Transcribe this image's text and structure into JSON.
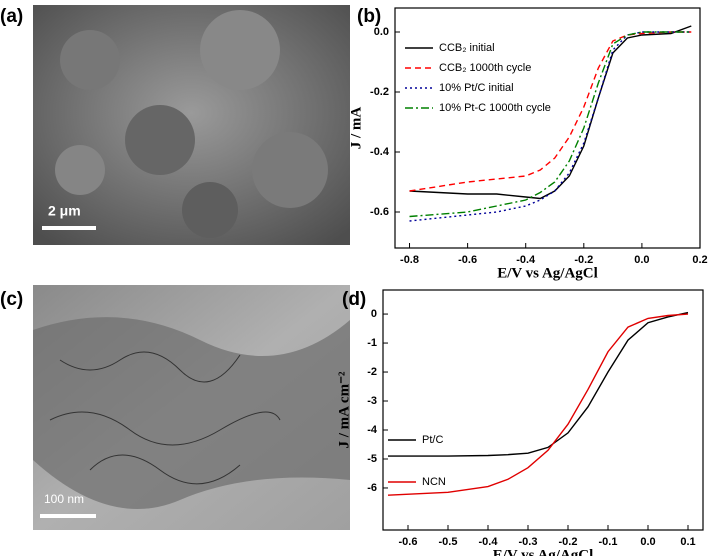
{
  "images": [
    {
      "panel_label": "(a)",
      "scale_bar": "2 μm"
    },
    {
      "panel_label": "(c)",
      "scale_bar": "100 nm"
    }
  ],
  "chart_data": [
    {
      "type": "line",
      "panel_label": "(b)",
      "x_label": "E/V vs Ag/AgCl",
      "y_label": "J / mA",
      "x": [
        -0.8,
        -0.6,
        -0.5,
        -0.4,
        -0.35,
        -0.3,
        -0.25,
        -0.2,
        -0.15,
        -0.1,
        -0.05,
        0,
        0.1,
        0.17
      ],
      "series": [
        {
          "name": "CCB₂   initial",
          "color": "#000000",
          "style": "solid",
          "values": [
            -0.53,
            -0.54,
            -0.54,
            -0.55,
            -0.555,
            -0.53,
            -0.48,
            -0.38,
            -0.22,
            -0.07,
            -0.02,
            -0.01,
            -0.005,
            0.02
          ]
        },
        {
          "name": "CCB₂   1000th cycle",
          "color": "#ff0000",
          "style": "dashed",
          "values": [
            -0.53,
            -0.5,
            -0.49,
            -0.48,
            -0.46,
            -0.42,
            -0.35,
            -0.25,
            -0.12,
            -0.03,
            -0.01,
            -0.005,
            0.0,
            0.0
          ]
        },
        {
          "name": "10% Pt/C   initial",
          "color": "#000099",
          "style": "dotted",
          "values": [
            -0.63,
            -0.61,
            -0.6,
            -0.58,
            -0.56,
            -0.53,
            -0.47,
            -0.37,
            -0.22,
            -0.06,
            -0.01,
            0.0,
            0.0,
            0.0
          ]
        },
        {
          "name": "10% Pt-C   1000th cycle",
          "color": "#008000",
          "style": "dashdot",
          "values": [
            -0.615,
            -0.6,
            -0.58,
            -0.56,
            -0.535,
            -0.5,
            -0.43,
            -0.32,
            -0.17,
            -0.04,
            -0.01,
            0.0,
            0.0,
            0.0
          ]
        }
      ],
      "xlim": [
        -0.85,
        0.2
      ],
      "ylim": [
        -0.72,
        0.08
      ],
      "xticks": [
        -0.8,
        -0.6,
        -0.4,
        -0.2,
        {
          "value": 0,
          "label": "0.0"
        },
        0.2
      ],
      "yticks": [
        {
          "value": 0,
          "label": "0.0"
        },
        -0.2,
        -0.4,
        -0.6
      ],
      "legend": "upper left"
    },
    {
      "type": "line",
      "panel_label": "(d)",
      "x_label": "E/V vs Ag/AgCl",
      "y_label": "J / mA cm⁻²",
      "x": [
        -0.65,
        -0.5,
        -0.4,
        -0.35,
        -0.3,
        -0.25,
        -0.2,
        -0.15,
        -0.1,
        -0.05,
        0,
        0.05,
        0.1
      ],
      "series": [
        {
          "name": "Pt/C",
          "color": "#000000",
          "style": "solid",
          "values": [
            -4.9,
            -4.9,
            -4.88,
            -4.85,
            -4.8,
            -4.6,
            -4.1,
            -3.2,
            -2.0,
            -0.9,
            -0.3,
            -0.1,
            0.05
          ]
        },
        {
          "name": "NCN",
          "color": "#e00000",
          "style": "solid",
          "values": [
            -6.25,
            -6.15,
            -5.95,
            -5.7,
            -5.3,
            -4.7,
            -3.8,
            -2.6,
            -1.3,
            -0.45,
            -0.15,
            -0.05,
            0.0
          ]
        }
      ],
      "xlim": [
        -0.6625,
        0.1375
      ],
      "ylim": [
        -7.45,
        0.83
      ],
      "xticks": [
        -0.6,
        -0.5,
        -0.4,
        -0.3,
        -0.2,
        -0.1,
        {
          "value": 0,
          "label": "0.0"
        },
        0.1
      ],
      "yticks": [
        0,
        -1,
        -2,
        -3,
        -4,
        -5,
        -6
      ],
      "legend": "lower left"
    }
  ]
}
